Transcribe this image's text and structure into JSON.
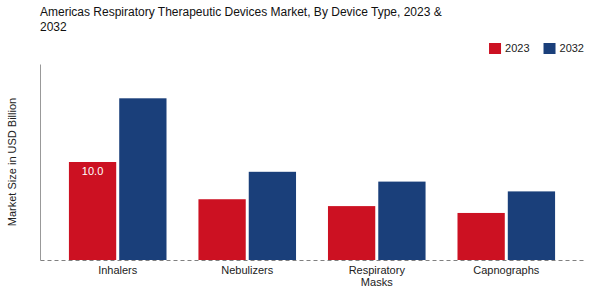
{
  "chart_data": {
    "type": "bar",
    "title": "Americas Respiratory Therapeutic Devices Market, By Device Type, 2023 &\n2032",
    "ylabel": "Market Size in USD Billion",
    "categories": [
      "Inhalers",
      "Nebulizers",
      "Respiratory\nMasks",
      "Capnographs"
    ],
    "series": [
      {
        "name": "2023",
        "color": "#cc1122",
        "values": [
          10.0,
          6.2,
          5.5,
          4.8
        ]
      },
      {
        "name": "2032",
        "color": "#1a3f7a",
        "values": [
          16.5,
          9.0,
          8.0,
          7.0
        ]
      }
    ],
    "annotations": [
      {
        "text": "10.0",
        "category": "Inhalers",
        "series": "2023"
      }
    ],
    "ylim": [
      0,
      20
    ],
    "grid": false,
    "legend": "top",
    "tick_labels": "x"
  }
}
